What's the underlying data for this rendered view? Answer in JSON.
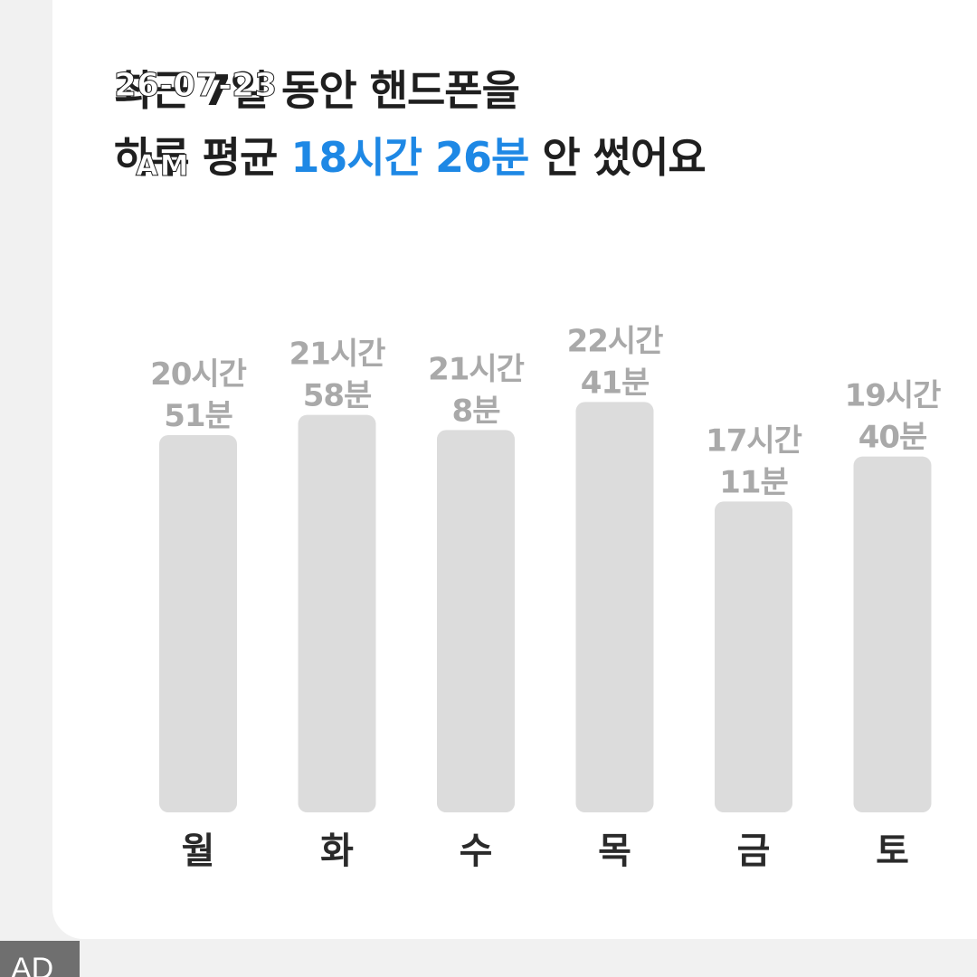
{
  "title": {
    "line1": "최근 7일 동안 핸드폰을",
    "line2_prefix": "하루 평균",
    "line2_highlight": "18시간 26분",
    "line2_suffix": "안 썼어요"
  },
  "overlay": {
    "timestamp": "26-07-23",
    "stamp2": "AM"
  },
  "colors": {
    "accent": "#1e88e5",
    "bar": "#dcdcdc",
    "value_label": "#a9a9a9",
    "category_label": "#2a2a2a",
    "background": "#f1f1f1",
    "card": "#ffffff"
  },
  "chart_data": {
    "type": "bar",
    "categories": [
      "월",
      "화",
      "수",
      "목",
      "금",
      "토"
    ],
    "values": [
      20.85,
      21.97,
      21.13,
      22.68,
      17.18,
      19.67
    ],
    "value_labels": [
      [
        "20시간",
        "51분"
      ],
      [
        "21시간",
        "58분"
      ],
      [
        "21시간",
        "8분"
      ],
      [
        "22시간",
        "41분"
      ],
      [
        "17시간",
        "11분"
      ],
      [
        "19시간",
        "40분"
      ]
    ],
    "unit": "hours",
    "ylim": [
      0,
      24
    ],
    "grid": false,
    "legend": "none"
  },
  "ad_badge": "AD"
}
